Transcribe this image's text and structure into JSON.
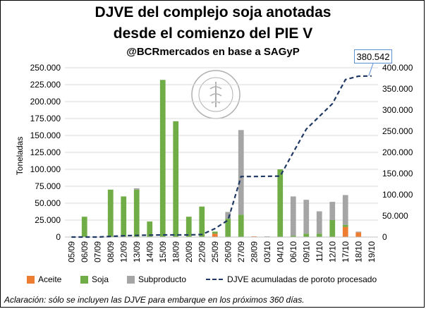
{
  "titles": {
    "line1": "DJVE del complejo soja anotadas",
    "line2": "desde el comienzo del PIE V",
    "line3": "@BCRmercados en base a SAGyP"
  },
  "note": "Aclaración: sólo se incluyen las DJVE para embarque en los próximos 360 días.",
  "callout": "380.542",
  "seal_text": "BOLSA DE COMERCIO DE ROSARIO",
  "colors": {
    "aceite": "#ed7d31",
    "soja": "#70ad47",
    "subproducto": "#a5a5a5",
    "line": "#1f3864",
    "callout_border": "#5b8fd6"
  },
  "chart_data": {
    "type": "bar",
    "categories": [
      "05/09",
      "06/09",
      "07/09",
      "08/09",
      "12/09",
      "13/09",
      "14/09",
      "15/09",
      "18/09",
      "20/09",
      "22/09",
      "25/09",
      "26/09",
      "27/09",
      "28/09",
      "03/10",
      "04/10",
      "06/10",
      "09/10",
      "11/10",
      "12/10",
      "17/10",
      "18/10",
      "19/10"
    ],
    "xtick_labels": [
      "05/09",
      "06/09",
      "07/09",
      "08/09",
      "12/09",
      "13/09",
      "14/09",
      "15/09",
      "18/09",
      "20/09",
      "22/09",
      "25/09",
      "26/09",
      "27/09",
      "28/09",
      "03/10",
      "04/10",
      "06/10",
      "09/10",
      "11/10",
      "12/10",
      "17/10",
      "18/10",
      "19/10"
    ],
    "ylabel": "Toneladas",
    "ylim": [
      0,
      250000
    ],
    "y2lim": [
      0,
      400000
    ],
    "yticks": [
      "0",
      "25.000",
      "50.000",
      "75.000",
      "100.000",
      "125.000",
      "150.000",
      "175.000",
      "200.000",
      "225.000",
      "250.000"
    ],
    "y2ticks": [
      "0",
      "50.000",
      "100.000",
      "150.000",
      "200.000",
      "250.000",
      "300.000",
      "350.000",
      "400.000"
    ],
    "series": [
      {
        "name": "Aceite",
        "kind": "bar",
        "values": [
          0,
          0,
          0,
          0,
          0,
          0,
          0,
          0,
          0,
          0,
          0,
          5000,
          0,
          0,
          1000,
          0,
          0,
          0,
          0,
          0,
          0,
          15000,
          7000,
          500
        ]
      },
      {
        "name": "Soja",
        "kind": "bar",
        "values": [
          0,
          30000,
          0,
          70000,
          60000,
          70000,
          23000,
          232000,
          171000,
          30000,
          45000,
          3000,
          27000,
          33000,
          0,
          0,
          100000,
          2000,
          5000,
          5000,
          25000,
          3000,
          0,
          0
        ]
      },
      {
        "name": "Subproducto",
        "kind": "bar",
        "values": [
          0,
          0,
          0,
          0,
          0,
          2000,
          0,
          0,
          0,
          0,
          0,
          0,
          10000,
          125000,
          0,
          1000,
          0,
          58000,
          50000,
          33000,
          27000,
          44000,
          1000,
          0
        ]
      },
      {
        "name": "DJVE acumuladas de poroto procesado",
        "kind": "line",
        "axis": "right",
        "values": [
          0,
          0,
          0,
          1500,
          3000,
          4000,
          4500,
          5000,
          5000,
          5000,
          6000,
          20000,
          40000,
          143000,
          143000,
          143500,
          144000,
          200000,
          255000,
          285000,
          315000,
          372000,
          380000,
          380542
        ]
      }
    ],
    "legend_position": "bottom",
    "grid": true
  }
}
